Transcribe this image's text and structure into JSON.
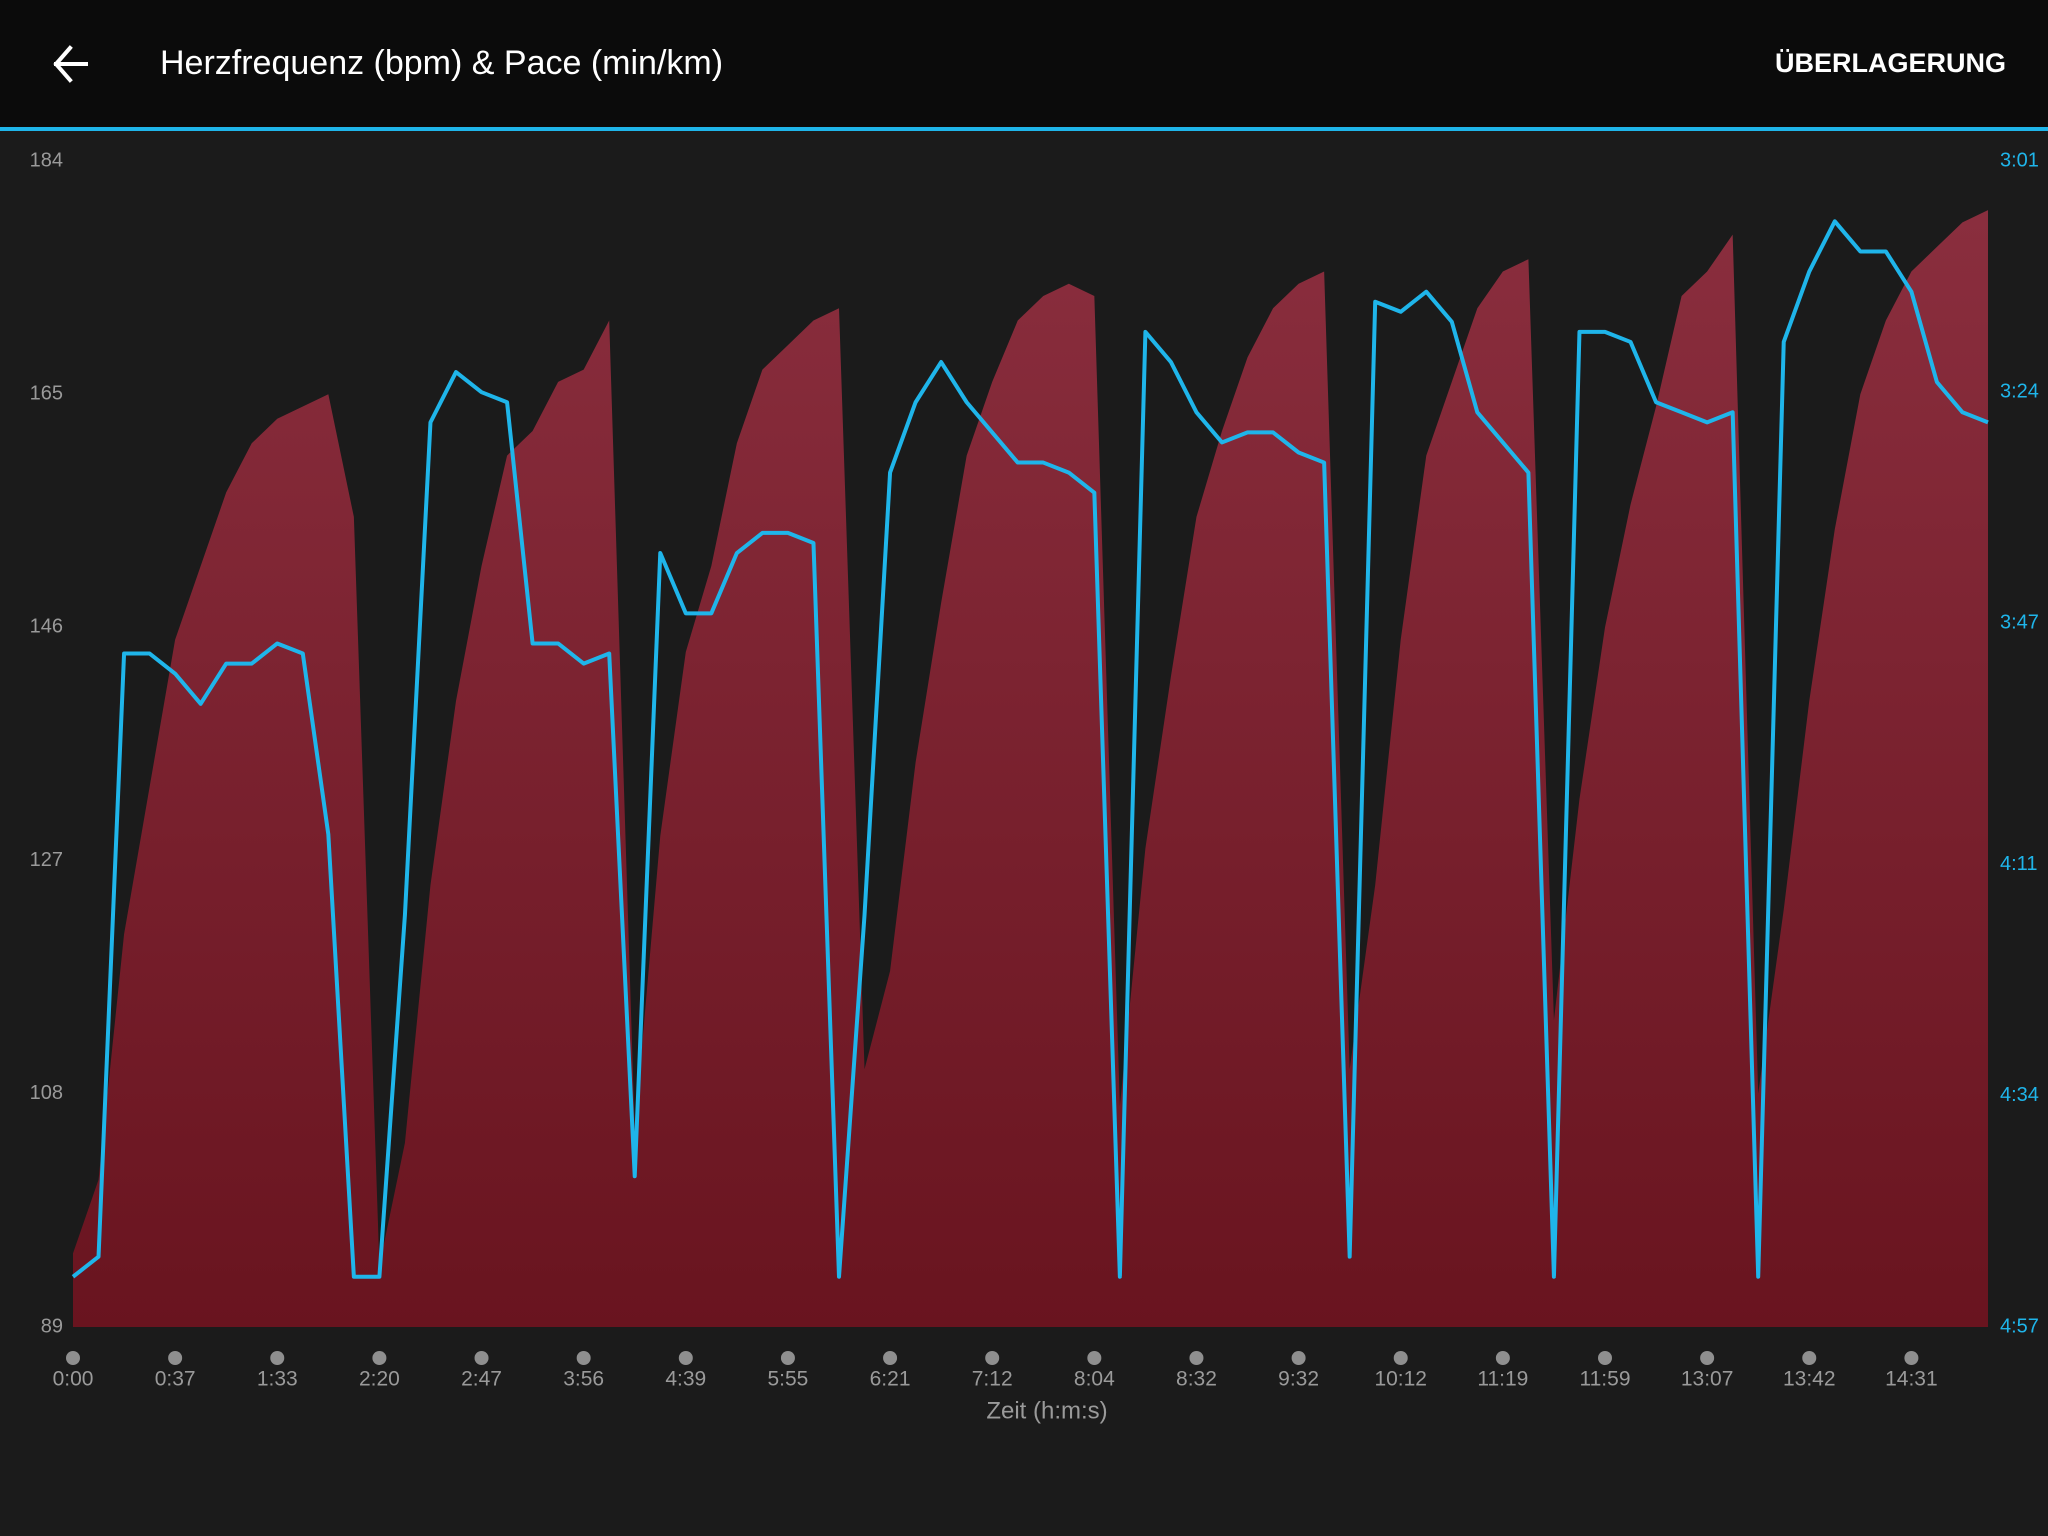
{
  "header": {
    "action": "ÜBERLAGERUNG"
  },
  "chart_data": {
    "type": "line",
    "title": "Herzfrequenz (bpm) & Pace (min/km)",
    "xlabel": "Zeit (h:m:s)",
    "categories": [
      "0:00",
      null,
      null,
      null,
      "0:37",
      null,
      null,
      null,
      "1:33",
      null,
      null,
      null,
      "2:20",
      null,
      null,
      null,
      "2:47",
      null,
      null,
      null,
      "3:56",
      null,
      null,
      null,
      "4:39",
      null,
      null,
      null,
      "5:55",
      null,
      null,
      null,
      "6:21",
      null,
      null,
      null,
      "7:12",
      null,
      null,
      null,
      "8:04",
      null,
      null,
      null,
      "8:32",
      null,
      null,
      null,
      "9:32",
      null,
      null,
      null,
      "10:12",
      null,
      null,
      null,
      "11:19",
      null,
      null,
      null,
      "11:59",
      null,
      null,
      null,
      "13:07",
      null,
      null,
      null,
      "13:42",
      null,
      null,
      null,
      "14:31",
      null,
      null,
      null
    ],
    "ylim": [
      89,
      184
    ],
    "yticks": [
      89,
      108,
      127,
      146,
      165,
      184
    ],
    "y2lim": [
      297,
      181
    ],
    "y2ticks": [
      {
        "value": 297,
        "label": "4:57"
      },
      {
        "value": 274,
        "label": "4:34"
      },
      {
        "value": 251,
        "label": "4:11"
      },
      {
        "value": 227,
        "label": "3:47"
      },
      {
        "value": 204,
        "label": "3:24"
      },
      {
        "value": 181,
        "label": "3:01"
      }
    ],
    "series": [
      {
        "type": "area",
        "color": "#8a2e3e",
        "values": [
          95,
          101,
          121,
          133,
          145,
          151,
          157,
          161,
          163,
          164,
          165,
          155,
          94,
          104,
          125,
          140,
          151,
          160,
          162,
          166,
          167,
          171,
          105,
          129,
          144,
          151,
          161,
          167,
          169,
          171,
          172,
          110,
          118,
          135,
          148,
          160,
          166,
          171,
          173,
          174,
          173,
          107,
          128,
          142,
          155,
          162,
          168,
          172,
          174,
          175,
          110,
          125,
          145,
          160,
          166,
          172,
          175,
          176,
          114,
          132,
          146,
          156,
          164,
          173,
          175,
          178,
          108,
          123,
          140,
          154,
          165,
          171,
          175,
          177,
          179,
          180
        ]
      },
      {
        "type": "line",
        "axis": "y2",
        "color": "#1fb5ea",
        "values": [
          292,
          290,
          230,
          230,
          232,
          235,
          231,
          231,
          229,
          230,
          248,
          292,
          292,
          256,
          207,
          202,
          204,
          205,
          229,
          229,
          231,
          230,
          282,
          220,
          226,
          226,
          220,
          218,
          218,
          219,
          292,
          256,
          212,
          205,
          201,
          205,
          208,
          211,
          211,
          212,
          214,
          292,
          198,
          201,
          206,
          209,
          208,
          208,
          210,
          211,
          290,
          195,
          196,
          194,
          197,
          206,
          209,
          212,
          292,
          198,
          198,
          199,
          205,
          206,
          207,
          206,
          292,
          199,
          192,
          187,
          190,
          190,
          194,
          203,
          206,
          207
        ]
      }
    ]
  }
}
